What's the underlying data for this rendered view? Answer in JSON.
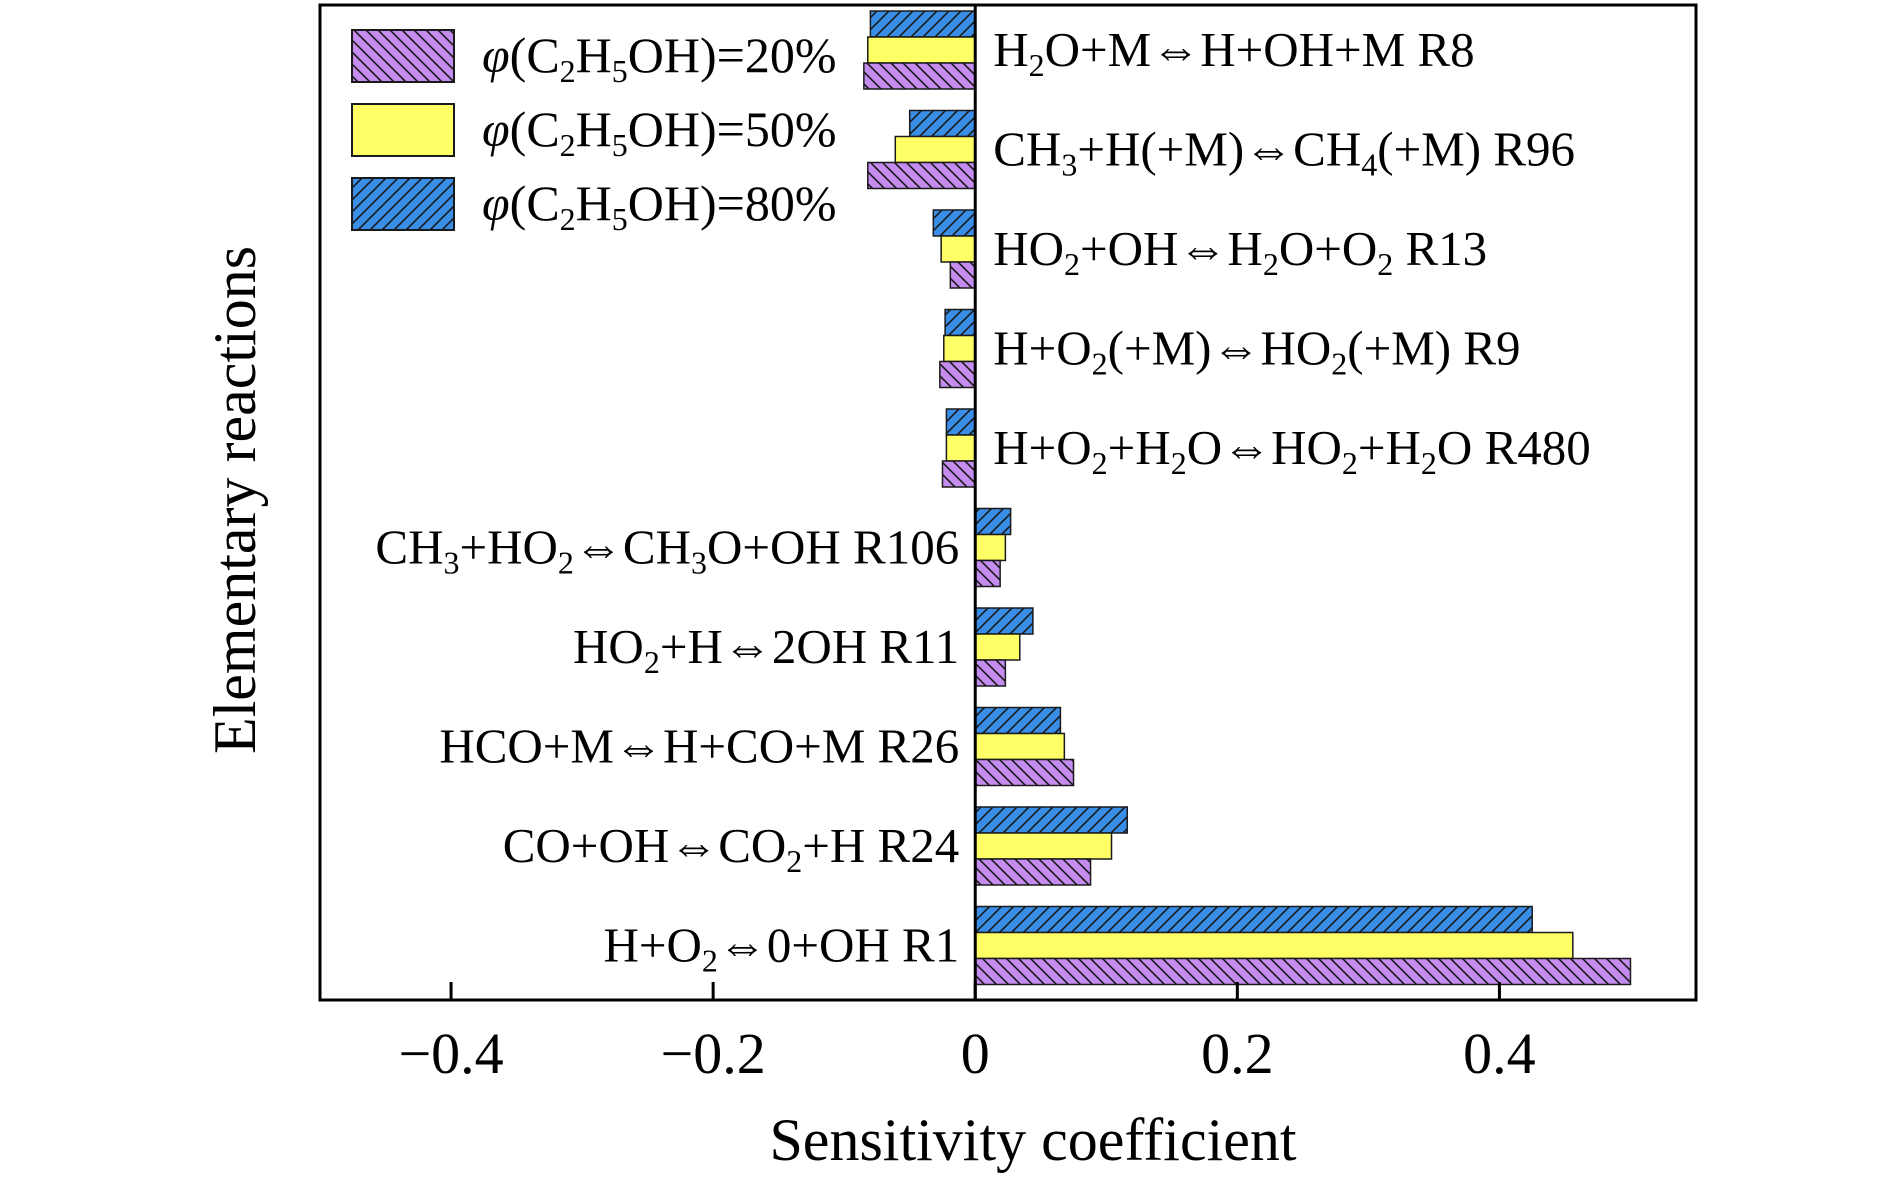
{
  "chart_data": {
    "type": "bar",
    "orientation": "horizontal",
    "xlabel": "Sensitivity coefficient",
    "ylabel": "Elementary reactions",
    "xlim": [
      -0.5,
      0.55
    ],
    "xticks": [
      -0.4,
      -0.2,
      0,
      0.2,
      0.4
    ],
    "xtick_labels": [
      "−0.4",
      "−0.2",
      "0",
      "0.2",
      "0.4"
    ],
    "grid": false,
    "legend_position": "top-left",
    "colors": {
      "20%": "#c58cf0",
      "50%": "#ffff66",
      "80%": "#3a8ee8",
      "hatch": "#1a1a1a",
      "axis": "#000000"
    },
    "categories": [
      {
        "parts": [
          [
            "H",
            ""
          ],
          [
            "2",
            "sub"
          ],
          [
            "O+M⇔H+OH+M R8",
            ""
          ]
        ]
      },
      {
        "parts": [
          [
            "CH",
            ""
          ],
          [
            "3",
            "sub"
          ],
          [
            "+H(+M)⇔CH",
            ""
          ],
          [
            "4",
            "sub"
          ],
          [
            "(+M) R96",
            ""
          ]
        ]
      },
      {
        "parts": [
          [
            "HO",
            ""
          ],
          [
            "2",
            "sub"
          ],
          [
            "+OH⇔H",
            ""
          ],
          [
            "2",
            "sub"
          ],
          [
            "O+O",
            ""
          ],
          [
            "2",
            "sub"
          ],
          [
            " R13",
            ""
          ]
        ]
      },
      {
        "parts": [
          [
            "H+O",
            ""
          ],
          [
            "2",
            "sub"
          ],
          [
            "(+M)⇔HO",
            ""
          ],
          [
            "2",
            "sub"
          ],
          [
            "(+M) R9",
            ""
          ]
        ]
      },
      {
        "parts": [
          [
            "H+O",
            ""
          ],
          [
            "2",
            "sub"
          ],
          [
            "+H",
            ""
          ],
          [
            "2",
            "sub"
          ],
          [
            "O⇔HO",
            ""
          ],
          [
            "2",
            "sub"
          ],
          [
            "+H",
            ""
          ],
          [
            "2",
            "sub"
          ],
          [
            "O R480",
            ""
          ]
        ]
      },
      {
        "parts": [
          [
            "CH",
            ""
          ],
          [
            "3",
            "sub"
          ],
          [
            "+HO",
            ""
          ],
          [
            "2",
            "sub"
          ],
          [
            "⇔CH",
            ""
          ],
          [
            "3",
            "sub"
          ],
          [
            "O+OH R106",
            ""
          ]
        ]
      },
      {
        "parts": [
          [
            "HO",
            ""
          ],
          [
            "2",
            "sub"
          ],
          [
            "+H⇔2OH R11",
            ""
          ]
        ]
      },
      {
        "parts": [
          [
            "HCO+M⇔H+CO+M R26",
            ""
          ]
        ]
      },
      {
        "parts": [
          [
            "CO+OH⇔CO",
            ""
          ],
          [
            "2",
            "sub"
          ],
          [
            "+H R24",
            ""
          ]
        ]
      },
      {
        "parts": [
          [
            "H+O",
            ""
          ],
          [
            "2",
            "sub"
          ],
          [
            "⇔0+OH R1",
            ""
          ]
        ]
      }
    ],
    "series": [
      {
        "name_parts": [
          [
            "φ",
            "italic"
          ],
          [
            "(C",
            ""
          ],
          [
            "2",
            "sub"
          ],
          [
            "H",
            ""
          ],
          [
            "5",
            "sub"
          ],
          [
            "OH)=20%",
            ""
          ]
        ],
        "key": "20%",
        "values": [
          -0.085,
          -0.082,
          -0.019,
          -0.027,
          -0.025,
          0.019,
          0.023,
          0.075,
          0.088,
          0.5
        ]
      },
      {
        "name_parts": [
          [
            "φ",
            "italic"
          ],
          [
            "(C",
            ""
          ],
          [
            "2",
            "sub"
          ],
          [
            "H",
            ""
          ],
          [
            "5",
            "sub"
          ],
          [
            "OH)=50%",
            ""
          ]
        ],
        "key": "50%",
        "values": [
          -0.082,
          -0.061,
          -0.026,
          -0.024,
          -0.022,
          0.023,
          0.034,
          0.068,
          0.104,
          0.456
        ]
      },
      {
        "name_parts": [
          [
            "φ",
            "italic"
          ],
          [
            "(C",
            ""
          ],
          [
            "2",
            "sub"
          ],
          [
            "H",
            ""
          ],
          [
            "5",
            "sub"
          ],
          [
            "OH)=80%",
            ""
          ]
        ],
        "key": "80%",
        "values": [
          -0.08,
          -0.05,
          -0.032,
          -0.023,
          -0.022,
          0.027,
          0.044,
          0.065,
          0.116,
          0.425
        ]
      }
    ]
  }
}
